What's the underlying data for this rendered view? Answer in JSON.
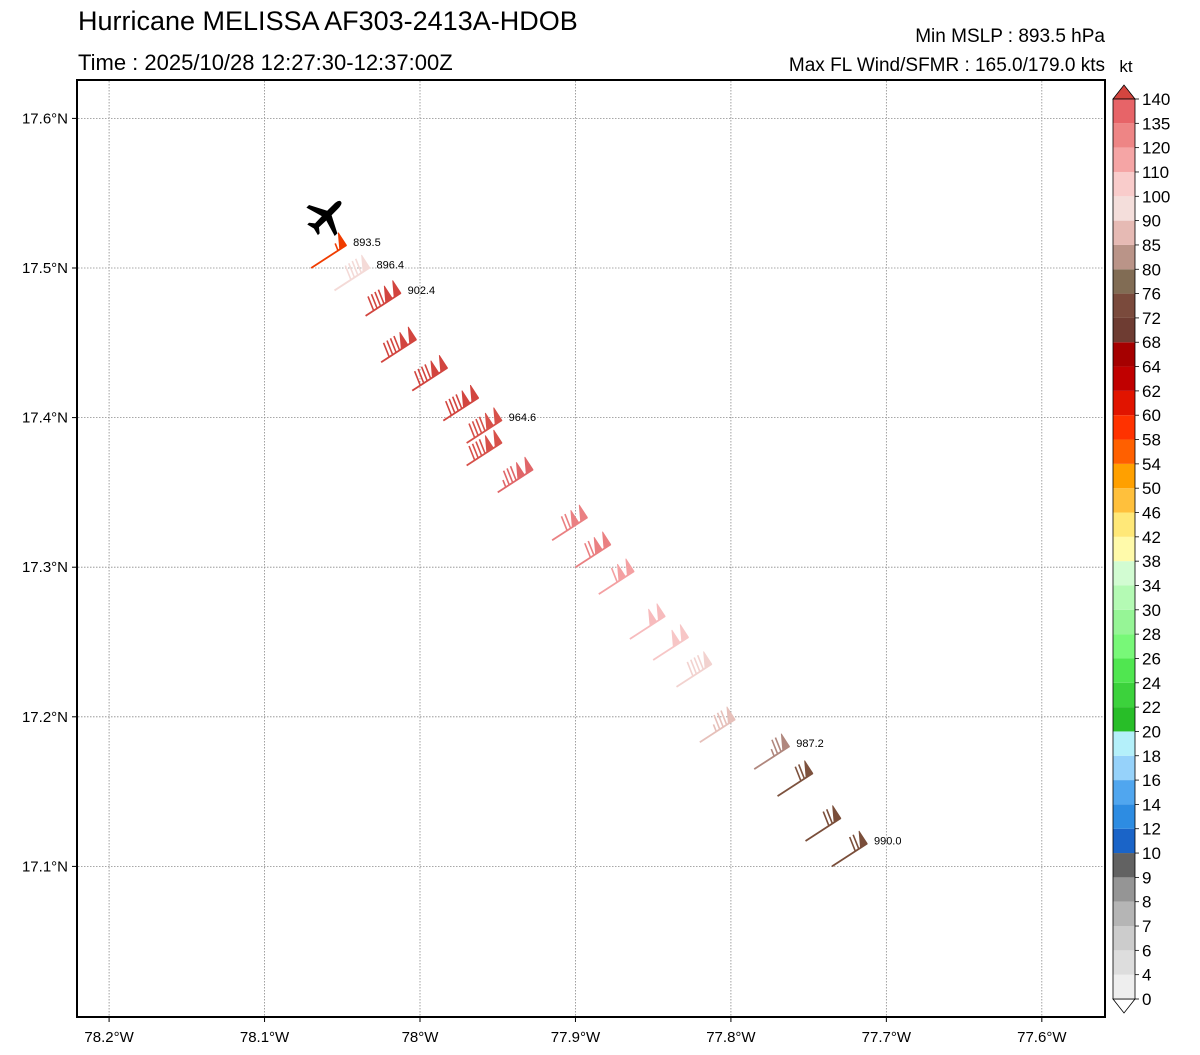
{
  "header": {
    "title": "Hurricane MELISSA AF303-2413A-HDOB",
    "time": "Time : 2025/10/28 12:27:30-12:37:00Z",
    "min_mslp": "Min MSLP : 893.5 hPa",
    "max_wind": "Max FL Wind/SFMR : 165.0/179.0 kts"
  },
  "map": {
    "lon_range": [
      -78.22,
      -77.56
    ],
    "lat_range": [
      17.0,
      17.625
    ],
    "lon_ticks": [
      {
        "v": -78.2,
        "label": "78.2°W"
      },
      {
        "v": -78.1,
        "label": "78.1°W"
      },
      {
        "v": -78.0,
        "label": "78°W"
      },
      {
        "v": -77.9,
        "label": "77.9°W"
      },
      {
        "v": -77.8,
        "label": "77.8°W"
      },
      {
        "v": -77.7,
        "label": "77.7°W"
      },
      {
        "v": -77.6,
        "label": "77.6°W"
      }
    ],
    "lat_ticks": [
      {
        "v": 17.1,
        "label": "17.1°N"
      },
      {
        "v": 17.2,
        "label": "17.2°N"
      },
      {
        "v": 17.3,
        "label": "17.3°N"
      },
      {
        "v": 17.4,
        "label": "17.4°N"
      },
      {
        "v": 17.5,
        "label": "17.5°N"
      },
      {
        "v": 17.6,
        "label": "17.6°N"
      }
    ],
    "aircraft": {
      "lon": -78.06,
      "lat": 17.535,
      "icon": "airplane-icon"
    }
  },
  "observations": [
    {
      "lon": -78.07,
      "lat": 17.5,
      "speed": 55,
      "color": "#f03c00",
      "pressure": "893.5"
    },
    {
      "lon": -78.055,
      "lat": 17.485,
      "speed": 88,
      "color": "#f4dad7",
      "pressure": "896.4"
    },
    {
      "lon": -78.035,
      "lat": 17.468,
      "speed": 140,
      "color": "#d2453f",
      "pressure": "902.4"
    },
    {
      "lon": -78.025,
      "lat": 17.437,
      "speed": 140,
      "color": "#d2453f"
    },
    {
      "lon": -78.005,
      "lat": 17.418,
      "speed": 140,
      "color": "#d2453f"
    },
    {
      "lon": -77.985,
      "lat": 17.398,
      "speed": 140,
      "color": "#d2453f"
    },
    {
      "lon": -77.97,
      "lat": 17.383,
      "speed": 140,
      "color": "#d7514a",
      "pressure": "964.6"
    },
    {
      "lon": -77.97,
      "lat": 17.368,
      "speed": 140,
      "color": "#d7514a"
    },
    {
      "lon": -77.95,
      "lat": 17.35,
      "speed": 135,
      "color": "#e06669"
    },
    {
      "lon": -77.915,
      "lat": 17.318,
      "speed": 120,
      "color": "#ea8082"
    },
    {
      "lon": -77.9,
      "lat": 17.3,
      "speed": 120,
      "color": "#ea8082"
    },
    {
      "lon": -77.885,
      "lat": 17.282,
      "speed": 110,
      "color": "#f4a0a2"
    },
    {
      "lon": -77.865,
      "lat": 17.252,
      "speed": 100,
      "color": "#f7bbbd"
    },
    {
      "lon": -77.85,
      "lat": 17.238,
      "speed": 100,
      "color": "#f7c6c6"
    },
    {
      "lon": -77.835,
      "lat": 17.22,
      "speed": 90,
      "color": "#f2d2cf"
    },
    {
      "lon": -77.82,
      "lat": 17.183,
      "speed": 85,
      "color": "#e6c0ba"
    },
    {
      "lon": -77.785,
      "lat": 17.165,
      "speed": 76,
      "color": "#b0877e",
      "pressure": "987.2"
    },
    {
      "lon": -77.77,
      "lat": 17.147,
      "speed": 72,
      "color": "#7d523e"
    },
    {
      "lon": -77.752,
      "lat": 17.117,
      "speed": 72,
      "color": "#7a4e3a"
    },
    {
      "lon": -77.735,
      "lat": 17.1,
      "speed": 72,
      "color": "#7a4e3a",
      "pressure": "990.0"
    }
  ],
  "colorbar": {
    "unit": "kt",
    "levels": [
      {
        "label": "0",
        "color": "#ffffff"
      },
      {
        "label": "4",
        "color": "#eeeeee"
      },
      {
        "label": "6",
        "color": "#dddddd"
      },
      {
        "label": "7",
        "color": "#cccccc"
      },
      {
        "label": "8",
        "color": "#b5b5b5"
      },
      {
        "label": "9",
        "color": "#959595"
      },
      {
        "label": "10",
        "color": "#626262"
      },
      {
        "label": "12",
        "color": "#1a64c8"
      },
      {
        "label": "14",
        "color": "#2d8ce2"
      },
      {
        "label": "16",
        "color": "#50a6ef"
      },
      {
        "label": "18",
        "color": "#96d2fa"
      },
      {
        "label": "20",
        "color": "#b4f0fa"
      },
      {
        "label": "22",
        "color": "#28be28"
      },
      {
        "label": "24",
        "color": "#3cd23c"
      },
      {
        "label": "26",
        "color": "#50e650"
      },
      {
        "label": "28",
        "color": "#78f878"
      },
      {
        "label": "30",
        "color": "#96f596"
      },
      {
        "label": "34",
        "color": "#b4fab4"
      },
      {
        "label": "38",
        "color": "#d2fcd2"
      },
      {
        "label": "42",
        "color": "#fffaaa"
      },
      {
        "label": "46",
        "color": "#ffe878"
      },
      {
        "label": "50",
        "color": "#ffc03c"
      },
      {
        "label": "54",
        "color": "#ffa000"
      },
      {
        "label": "58",
        "color": "#ff6000"
      },
      {
        "label": "60",
        "color": "#ff3200"
      },
      {
        "label": "62",
        "color": "#e11400"
      },
      {
        "label": "64",
        "color": "#c00000"
      },
      {
        "label": "68",
        "color": "#a50000"
      },
      {
        "label": "72",
        "color": "#6e3c32"
      },
      {
        "label": "76",
        "color": "#7a4a3c"
      },
      {
        "label": "80",
        "color": "#816c54"
      },
      {
        "label": "85",
        "color": "#ba9488"
      },
      {
        "label": "90",
        "color": "#e6bab4"
      },
      {
        "label": "100",
        "color": "#f4dedb"
      },
      {
        "label": "110",
        "color": "#f9cccb"
      },
      {
        "label": "120",
        "color": "#f5a5a5"
      },
      {
        "label": "135",
        "color": "#ee8585"
      },
      {
        "label": "140",
        "color": "#e76468"
      },
      {
        "label": "",
        "color": "#d3453f"
      }
    ]
  }
}
